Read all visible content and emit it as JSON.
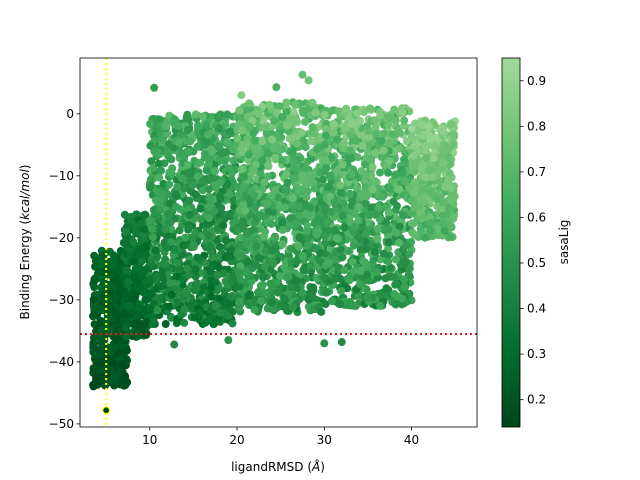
{
  "chart_data": {
    "type": "scatter",
    "xlabel_main": "ligandRMSD (",
    "xlabel_unit": "Å",
    "xlabel_close": ")",
    "ylabel_main": "Binding Energy (",
    "ylabel_unit": "kcal/mol",
    "ylabel_close": ")",
    "colorbar_label": "sasaLig",
    "xlim": [
      2,
      47.5
    ],
    "ylim": [
      -50.5,
      9
    ],
    "x_ticks": [
      10,
      20,
      30,
      40
    ],
    "y_ticks": [
      0,
      -10,
      -20,
      -30,
      -40,
      -50
    ],
    "colorbar_ticks": [
      0.2,
      0.3,
      0.4,
      0.5,
      0.6,
      0.7,
      0.8,
      0.9
    ],
    "colorbar_range": [
      0.14,
      0.95
    ],
    "colormap": "Greens_r",
    "colormap_stops": [
      "#00441b",
      "#006d2c",
      "#238b45",
      "#41ab5d",
      "#74c476",
      "#a1d99b"
    ],
    "reference_lines": [
      {
        "orientation": "vertical",
        "value": 5.0,
        "color": "#ffff00",
        "style": "dotted"
      },
      {
        "orientation": "horizontal",
        "value": -35.5,
        "color": "#e31a1c",
        "style": "dotted"
      }
    ],
    "highlight_point": {
      "x": 5.0,
      "y": -47.8,
      "sasa": 0.15
    },
    "point_clusters": [
      {
        "x": [
          3.5,
          7.5
        ],
        "y": [
          -44,
          -22
        ],
        "sasa": [
          0.14,
          0.32
        ],
        "count": 420
      },
      {
        "x": [
          7,
          10
        ],
        "y": [
          -36,
          -16
        ],
        "sasa": [
          0.18,
          0.45
        ],
        "count": 260
      },
      {
        "x": [
          10,
          20
        ],
        "y": [
          -34,
          0
        ],
        "sasa": [
          0.25,
          0.75
        ],
        "count": 900
      },
      {
        "x": [
          20,
          30
        ],
        "y": [
          -32,
          2
        ],
        "sasa": [
          0.35,
          0.88
        ],
        "count": 1000
      },
      {
        "x": [
          30,
          40
        ],
        "y": [
          -31,
          1
        ],
        "sasa": [
          0.35,
          0.9
        ],
        "count": 900
      },
      {
        "x": [
          40,
          45
        ],
        "y": [
          -20,
          -1
        ],
        "sasa": [
          0.6,
          0.95
        ],
        "count": 360
      }
    ],
    "outliers": [
      {
        "x": 10.5,
        "y": 4.2,
        "sasa": 0.55
      },
      {
        "x": 27.5,
        "y": 6.3,
        "sasa": 0.75
      },
      {
        "x": 28.2,
        "y": 5.4,
        "sasa": 0.78
      },
      {
        "x": 24.5,
        "y": 4.3,
        "sasa": 0.65
      },
      {
        "x": 20.5,
        "y": 3.0,
        "sasa": 0.85
      },
      {
        "x": 12.8,
        "y": -37.2,
        "sasa": 0.45
      },
      {
        "x": 19.0,
        "y": -36.5,
        "sasa": 0.5
      },
      {
        "x": 30.0,
        "y": -37.0,
        "sasa": 0.5
      },
      {
        "x": 32.0,
        "y": -36.8,
        "sasa": 0.45
      },
      {
        "x": 38.5,
        "y": -29.5,
        "sasa": 0.6
      }
    ]
  }
}
